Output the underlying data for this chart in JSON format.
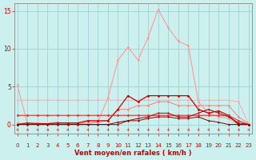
{
  "x": [
    0,
    1,
    2,
    3,
    4,
    5,
    6,
    7,
    8,
    9,
    10,
    11,
    12,
    13,
    14,
    15,
    16,
    17,
    18,
    19,
    20,
    21,
    22,
    23
  ],
  "series": [
    {
      "name": "light_pink_rafales",
      "color": "#FF9999",
      "linewidth": 0.8,
      "markersize": 2.0,
      "y": [
        5.2,
        0.1,
        0.1,
        0.1,
        0.1,
        0.1,
        0.1,
        0.1,
        0.3,
        3.5,
        8.5,
        10.2,
        8.5,
        11.5,
        15.2,
        12.8,
        11.0,
        10.4,
        3.0,
        1.5,
        1.0,
        0.8,
        0.0,
        0.0
      ]
    },
    {
      "name": "light_pink_flat1",
      "color": "#FFB0B0",
      "linewidth": 0.8,
      "markersize": 2.0,
      "y": [
        3.2,
        3.2,
        3.2,
        3.2,
        3.2,
        3.2,
        3.2,
        3.2,
        3.2,
        3.2,
        3.2,
        3.2,
        3.2,
        3.2,
        3.2,
        3.2,
        3.2,
        3.2,
        3.2,
        3.2,
        3.2,
        3.2,
        3.0,
        0.0
      ]
    },
    {
      "name": "pink_wavy",
      "color": "#FF8888",
      "linewidth": 0.8,
      "markersize": 2.0,
      "y": [
        0.2,
        0.0,
        0.2,
        0.1,
        0.3,
        0.1,
        0.2,
        0.4,
        0.3,
        0.5,
        2.0,
        2.0,
        2.5,
        2.5,
        3.0,
        3.0,
        2.5,
        2.5,
        2.5,
        2.5,
        2.5,
        2.5,
        1.0,
        0.1
      ]
    },
    {
      "name": "dark_red_spiky",
      "color": "#CC0000",
      "linewidth": 0.9,
      "markersize": 2.0,
      "y": [
        0.0,
        0.2,
        0.1,
        0.1,
        0.2,
        0.2,
        0.2,
        0.5,
        0.5,
        0.5,
        2.0,
        3.8,
        3.0,
        3.8,
        3.8,
        3.8,
        3.8,
        3.8,
        2.0,
        1.5,
        1.8,
        1.2,
        0.0,
        0.0
      ]
    },
    {
      "name": "dark_red_flat",
      "color": "#DD3333",
      "linewidth": 0.8,
      "markersize": 2.0,
      "y": [
        1.2,
        1.2,
        1.2,
        1.2,
        1.2,
        1.2,
        1.2,
        1.2,
        1.2,
        1.2,
        1.2,
        1.2,
        1.2,
        1.2,
        1.2,
        1.2,
        1.2,
        1.2,
        1.2,
        1.2,
        1.2,
        1.2,
        0.5,
        0.0
      ]
    },
    {
      "name": "dark_line1",
      "color": "#AA0000",
      "linewidth": 0.7,
      "markersize": 1.5,
      "y": [
        0.0,
        0.0,
        0.0,
        0.0,
        0.0,
        0.0,
        0.0,
        0.0,
        0.0,
        0.0,
        0.0,
        0.5,
        0.8,
        1.0,
        1.5,
        1.5,
        1.0,
        1.0,
        1.5,
        2.0,
        1.5,
        1.0,
        0.2,
        0.0
      ]
    },
    {
      "name": "dark_line2",
      "color": "#880000",
      "linewidth": 0.7,
      "markersize": 1.5,
      "y": [
        0.0,
        0.0,
        0.0,
        0.0,
        0.0,
        0.0,
        0.0,
        0.0,
        0.0,
        0.0,
        0.3,
        0.5,
        0.5,
        0.8,
        1.0,
        1.0,
        0.8,
        0.8,
        1.0,
        0.5,
        0.3,
        0.0,
        0.0,
        0.0
      ]
    }
  ],
  "xlabel": "Vent moyen/en rafales ( km/h )",
  "xlim": [
    -0.3,
    23.3
  ],
  "ylim": [
    -1.2,
    16
  ],
  "yticks": [
    0,
    5,
    10,
    15
  ],
  "xticks": [
    0,
    1,
    2,
    3,
    4,
    5,
    6,
    7,
    8,
    9,
    10,
    11,
    12,
    13,
    14,
    15,
    16,
    17,
    18,
    19,
    20,
    21,
    22,
    23
  ],
  "bg_color": "#CCF0EE",
  "grid_color": "#99CCCC",
  "spine_color": "#888888",
  "label_color": "#CC0000",
  "tick_color": "#CC0000",
  "arrow_color": "#CC2222"
}
